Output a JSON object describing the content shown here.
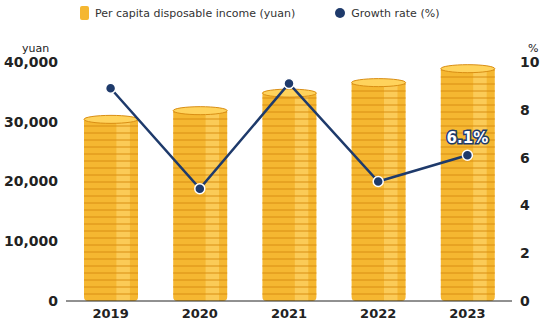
{
  "chart_data": {
    "type": "bar",
    "categories": [
      "2019",
      "2020",
      "2021",
      "2022",
      "2023"
    ],
    "y_label": "yuan",
    "y2_label": "%",
    "ylim": [
      0,
      40000
    ],
    "yticks": [
      0,
      {
        "value": 10000,
        "label": "10,000"
      },
      {
        "value": 20000,
        "label": "20,000"
      },
      {
        "value": 30000,
        "label": "30,000"
      },
      {
        "value": 40000,
        "label": "40,000"
      }
    ],
    "y2lim": [
      0,
      10
    ],
    "y2ticks": [
      0,
      2,
      4,
      6,
      8,
      10
    ],
    "grid": false,
    "legend": "top",
    "series": [
      {
        "name": "Per capita disposable income (yuan)",
        "type": "bar",
        "color": "#f5b731",
        "values": [
          30733,
          32189,
          35128,
          36883,
          39218
        ]
      },
      {
        "name": "Growth rate (%)",
        "type": "line",
        "axis": "y2",
        "color": "#1e3a6b",
        "marker": "circle",
        "values": [
          8.9,
          4.7,
          9.1,
          5.0,
          6.1
        ],
        "value_labels": [
          null,
          null,
          null,
          null,
          "6.1%"
        ]
      }
    ]
  }
}
